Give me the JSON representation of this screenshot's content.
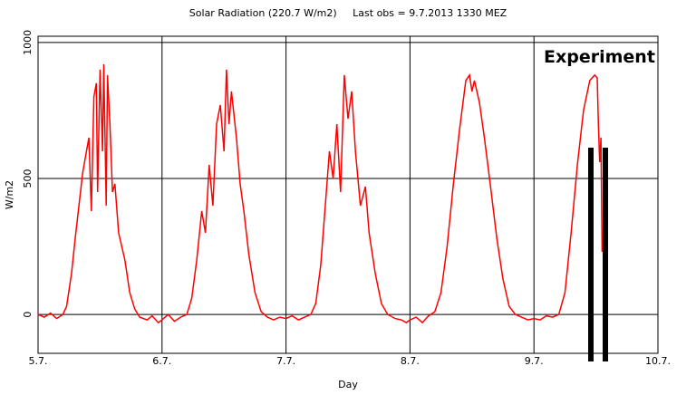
{
  "chart_data": {
    "type": "line",
    "title": "Solar Radiation (220.7 W/m2)     Last obs = 9.7.2013 1330 MEZ",
    "xlabel": "Day",
    "ylabel": "W/m2",
    "annotation": "Experiment",
    "color": "#ff0000",
    "grid": true,
    "xlim": [
      0,
      5
    ],
    "ylim": [
      -143,
      1023
    ],
    "xticks": [
      {
        "value": 0,
        "label": "5.7."
      },
      {
        "value": 1,
        "label": "6.7."
      },
      {
        "value": 2,
        "label": "7.7."
      },
      {
        "value": 3,
        "label": "8.7."
      },
      {
        "value": 4,
        "label": "9.7."
      },
      {
        "value": 5,
        "label": "10.7."
      }
    ],
    "yticks": [
      0,
      500,
      1000
    ],
    "x": [
      0,
      0.05,
      0.1,
      0.15,
      0.2,
      0.23,
      0.27,
      0.3,
      0.33,
      0.36,
      0.39,
      0.41,
      0.43,
      0.45,
      0.47,
      0.48,
      0.5,
      0.52,
      0.53,
      0.55,
      0.56,
      0.58,
      0.6,
      0.62,
      0.65,
      0.7,
      0.74,
      0.78,
      0.82,
      0.88,
      0.92,
      0.97,
      1.0,
      1.05,
      1.1,
      1.15,
      1.2,
      1.24,
      1.28,
      1.32,
      1.35,
      1.38,
      1.41,
      1.44,
      1.47,
      1.5,
      1.52,
      1.54,
      1.56,
      1.6,
      1.63,
      1.66,
      1.7,
      1.75,
      1.8,
      1.85,
      1.9,
      1.95,
      2.0,
      2.05,
      2.1,
      2.15,
      2.2,
      2.24,
      2.28,
      2.32,
      2.35,
      2.38,
      2.41,
      2.44,
      2.47,
      2.5,
      2.53,
      2.56,
      2.6,
      2.64,
      2.67,
      2.72,
      2.77,
      2.82,
      2.88,
      2.93,
      2.97,
      3.0,
      3.05,
      3.1,
      3.15,
      3.2,
      3.25,
      3.3,
      3.35,
      3.4,
      3.45,
      3.48,
      3.5,
      3.52,
      3.56,
      3.6,
      3.65,
      3.7,
      3.75,
      3.8,
      3.85,
      3.9,
      3.95,
      4.0,
      4.05,
      4.1,
      4.15,
      4.2,
      4.25,
      4.3,
      4.35,
      4.4,
      4.45,
      4.49,
      4.51,
      4.52,
      4.53,
      4.54,
      4.55
    ],
    "values": [
      0,
      -10,
      5,
      -15,
      0,
      30,
      150,
      280,
      400,
      520,
      600,
      650,
      380,
      800,
      850,
      450,
      900,
      600,
      920,
      400,
      880,
      700,
      450,
      480,
      300,
      200,
      80,
      20,
      -10,
      -20,
      -5,
      -30,
      -20,
      0,
      -25,
      -10,
      0,
      60,
      200,
      380,
      300,
      550,
      400,
      700,
      770,
      600,
      900,
      700,
      820,
      650,
      480,
      380,
      220,
      80,
      10,
      -10,
      -20,
      -10,
      -15,
      -5,
      -20,
      -10,
      0,
      40,
      180,
      420,
      600,
      500,
      700,
      450,
      880,
      720,
      820,
      600,
      400,
      470,
      300,
      150,
      40,
      0,
      -15,
      -20,
      -30,
      -20,
      -10,
      -30,
      -5,
      10,
      80,
      250,
      480,
      680,
      860,
      880,
      820,
      860,
      780,
      650,
      470,
      280,
      130,
      30,
      0,
      -10,
      -20,
      -15,
      -20,
      -5,
      -10,
      0,
      80,
      300,
      550,
      750,
      860,
      880,
      870,
      700,
      560,
      650,
      230
    ]
  }
}
